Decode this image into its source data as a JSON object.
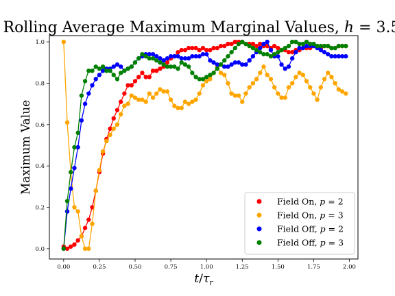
{
  "chart_data": {
    "type": "line",
    "title": "Rolling Average Maximum Marginal Values, h = 3.5",
    "xlabel": "t/τr",
    "ylabel": "Maximum Value",
    "xlim": [
      -0.1,
      2.06
    ],
    "ylim": [
      -0.05,
      1.03
    ],
    "xticks": [
      "0.00",
      "0.25",
      "0.50",
      "0.75",
      "1.00",
      "1.25",
      "1.50",
      "1.75",
      "2.00"
    ],
    "xtick_values": [
      0,
      0.25,
      0.5,
      0.75,
      1.0,
      1.25,
      1.5,
      1.75,
      2.0
    ],
    "yticks": [
      "0.0",
      "0.2",
      "0.4",
      "0.6",
      "0.8",
      "1.0"
    ],
    "ytick_values": [
      0,
      0.2,
      0.4,
      0.6,
      0.8,
      1.0
    ],
    "grid": false,
    "legend_position": "bottom-right",
    "x": [
      0.0,
      0.025,
      0.05,
      0.075,
      0.1,
      0.125,
      0.15,
      0.175,
      0.2,
      0.225,
      0.25,
      0.275,
      0.3,
      0.325,
      0.35,
      0.375,
      0.4,
      0.425,
      0.45,
      0.475,
      0.5,
      0.525,
      0.55,
      0.575,
      0.6,
      0.625,
      0.65,
      0.675,
      0.7,
      0.725,
      0.75,
      0.775,
      0.8,
      0.825,
      0.85,
      0.875,
      0.9,
      0.925,
      0.95,
      0.975,
      1.0,
      1.025,
      1.05,
      1.075,
      1.1,
      1.125,
      1.15,
      1.175,
      1.2,
      1.225,
      1.25,
      1.275,
      1.3,
      1.325,
      1.35,
      1.375,
      1.4,
      1.425,
      1.45,
      1.475,
      1.5,
      1.525,
      1.55,
      1.575,
      1.6,
      1.625,
      1.65,
      1.675,
      1.7,
      1.725,
      1.75,
      1.775,
      1.8,
      1.825,
      1.85,
      1.875,
      1.9,
      1.925,
      1.95,
      1.975
    ],
    "series": [
      {
        "name": "Field On, p = 2",
        "color": "#ff0000",
        "values": [
          0.01,
          0.0,
          0.01,
          0.02,
          0.04,
          0.06,
          0.1,
          0.14,
          0.2,
          0.28,
          0.37,
          0.46,
          0.53,
          0.58,
          0.63,
          0.67,
          0.71,
          0.75,
          0.79,
          0.79,
          0.81,
          0.83,
          0.85,
          0.83,
          0.83,
          0.86,
          0.86,
          0.87,
          0.88,
          0.9,
          0.92,
          0.93,
          0.95,
          0.96,
          0.96,
          0.97,
          0.97,
          0.97,
          0.96,
          0.97,
          0.96,
          0.96,
          0.97,
          0.97,
          0.98,
          0.98,
          0.99,
          0.99,
          1.0,
          1.0,
          1.0,
          0.99,
          0.99,
          0.99,
          0.98,
          0.99,
          0.98,
          0.98,
          0.97,
          0.98,
          0.97,
          0.96,
          0.96,
          0.95,
          0.95,
          0.96,
          0.96,
          0.97,
          0.97,
          0.97,
          0.98,
          0.98,
          0.97,
          0.98,
          0.98,
          0.97,
          0.97,
          0.98,
          0.98,
          0.98
        ]
      },
      {
        "name": "Field On, p = 3",
        "color": "#ffa500",
        "values": [
          1.0,
          0.61,
          0.37,
          0.2,
          0.18,
          0.06,
          0.0,
          0.0,
          0.12,
          0.28,
          0.38,
          0.47,
          0.52,
          0.55,
          0.58,
          0.6,
          0.65,
          0.69,
          0.7,
          0.74,
          0.73,
          0.72,
          0.72,
          0.71,
          0.75,
          0.73,
          0.75,
          0.77,
          0.76,
          0.76,
          0.72,
          0.69,
          0.68,
          0.68,
          0.71,
          0.7,
          0.71,
          0.72,
          0.75,
          0.79,
          0.81,
          0.82,
          0.85,
          0.88,
          0.85,
          0.84,
          0.8,
          0.75,
          0.74,
          0.74,
          0.71,
          0.75,
          0.78,
          0.8,
          0.82,
          0.85,
          0.88,
          0.84,
          0.82,
          0.78,
          0.75,
          0.73,
          0.73,
          0.78,
          0.8,
          0.83,
          0.85,
          0.84,
          0.81,
          0.78,
          0.75,
          0.72,
          0.78,
          0.82,
          0.85,
          0.83,
          0.8,
          0.77,
          0.76,
          0.75
        ]
      },
      {
        "name": "Field Off, p = 2",
        "color": "#0000ff",
        "values": [
          0.0,
          0.18,
          0.29,
          0.39,
          0.49,
          0.62,
          0.7,
          0.75,
          0.79,
          0.82,
          0.84,
          0.86,
          0.87,
          0.87,
          0.88,
          0.89,
          0.88,
          0.86,
          0.87,
          0.88,
          0.9,
          0.92,
          0.93,
          0.94,
          0.94,
          0.94,
          0.93,
          0.92,
          0.91,
          0.92,
          0.93,
          0.93,
          0.93,
          0.92,
          0.92,
          0.92,
          0.93,
          0.93,
          0.93,
          0.94,
          0.94,
          0.91,
          0.9,
          0.89,
          0.89,
          0.88,
          0.88,
          0.89,
          0.9,
          0.9,
          0.89,
          0.89,
          0.91,
          0.93,
          0.95,
          0.97,
          0.99,
          1.0,
          0.96,
          0.93,
          0.93,
          0.89,
          0.87,
          0.88,
          0.92,
          0.95,
          0.97,
          0.97,
          0.98,
          0.98,
          0.98,
          0.97,
          0.96,
          0.95,
          0.94,
          0.93,
          0.93,
          0.93,
          0.93,
          0.93
        ]
      },
      {
        "name": "Field Off, p = 3",
        "color": "#008000",
        "values": [
          0.0,
          0.23,
          0.37,
          0.49,
          0.56,
          0.74,
          0.81,
          0.86,
          0.86,
          0.88,
          0.87,
          0.88,
          0.86,
          0.86,
          0.84,
          0.82,
          0.85,
          0.86,
          0.87,
          0.88,
          0.9,
          0.92,
          0.94,
          0.93,
          0.92,
          0.92,
          0.91,
          0.9,
          0.89,
          0.88,
          0.88,
          0.88,
          0.87,
          0.9,
          0.89,
          0.88,
          0.85,
          0.83,
          0.82,
          0.82,
          0.83,
          0.84,
          0.85,
          0.87,
          0.89,
          0.91,
          0.93,
          0.95,
          0.97,
          0.99,
          1.0,
          0.99,
          0.98,
          0.97,
          0.96,
          0.95,
          0.94,
          0.94,
          0.93,
          0.94,
          0.95,
          0.96,
          0.97,
          0.98,
          1.0,
          1.0,
          0.99,
          0.99,
          1.0,
          0.99,
          0.99,
          0.98,
          0.98,
          0.98,
          0.98,
          0.97,
          0.97,
          0.98,
          0.98,
          0.98
        ]
      }
    ]
  }
}
